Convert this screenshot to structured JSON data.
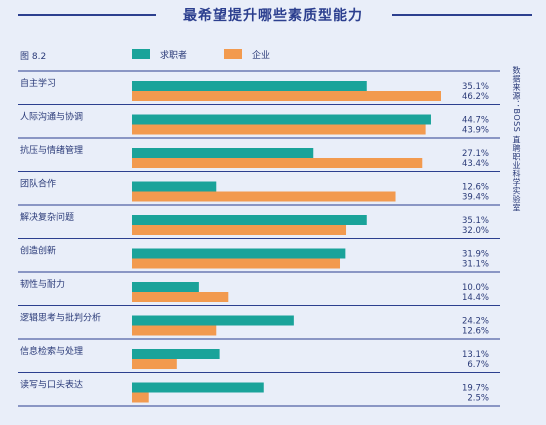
{
  "header": {
    "title": "最希望提升哪些素质型能力"
  },
  "figure_label": "图 8.2",
  "source_note": "数据来源：BOSS 直聘职业科学实验室",
  "colors": {
    "series1": "#1aa39a",
    "series2": "#f29a4f",
    "rule": "#2c3f8f",
    "text": "#2a3a78"
  },
  "chart_data": {
    "type": "bar",
    "orientation": "horizontal",
    "categories": [
      "自主学习",
      "人际沟通与协调",
      "抗压与情绪管理",
      "团队合作",
      "解决复杂问题",
      "创造创新",
      "韧性与耐力",
      "逻辑思考与批判分析",
      "信息检索与处理",
      "读写与口头表达"
    ],
    "series": [
      {
        "name": "求职者",
        "values": [
          35.1,
          44.7,
          27.1,
          12.6,
          35.1,
          31.9,
          10.0,
          24.2,
          13.1,
          19.7
        ],
        "labels": [
          "35.1%",
          "44.7%",
          "27.1%",
          "12.6%",
          "35.1%",
          "31.9%",
          "10.0%",
          "24.2%",
          "13.1%",
          "19.7%"
        ]
      },
      {
        "name": "企业",
        "values": [
          46.2,
          43.9,
          43.4,
          39.4,
          32.0,
          31.1,
          14.4,
          12.6,
          6.7,
          2.5
        ],
        "labels": [
          "46.2%",
          "43.9%",
          "43.4%",
          "39.4%",
          "32.0%",
          "31.1%",
          "14.4%",
          "12.6%",
          "6.7%",
          "2.5%"
        ]
      }
    ],
    "xlim": [
      0,
      46.2
    ],
    "legend_position": "top",
    "grid": false
  }
}
